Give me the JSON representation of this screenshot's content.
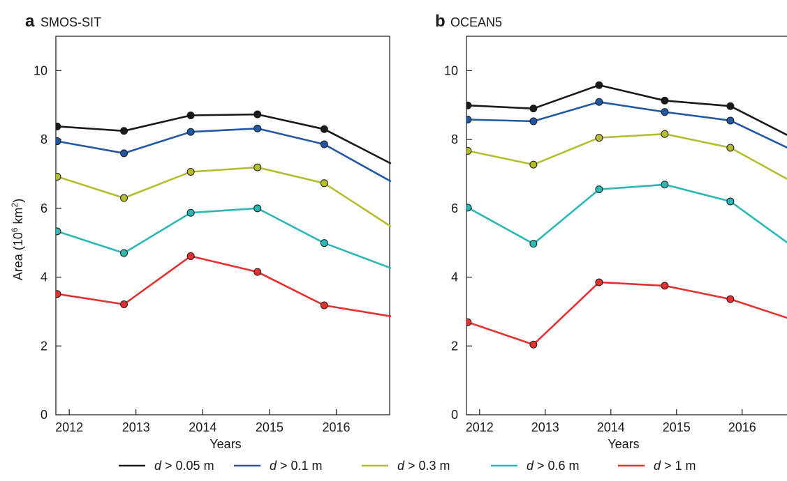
{
  "chart_data": [
    {
      "type": "line",
      "panel_letter": "a",
      "title": "SMOS-SIT",
      "xlabel": "Years",
      "ylabel": "Area (10",
      "ylabel_sup1": "6",
      "ylabel_mid": " km",
      "ylabel_sup2": "2",
      "ylabel_end": ")",
      "xlim": [
        2011.8,
        2016.8
      ],
      "ylim": [
        0,
        11
      ],
      "xticks": [
        2012,
        2013,
        2014,
        2015,
        2016
      ],
      "yticks": [
        0,
        2,
        4,
        6,
        8,
        10
      ],
      "x": [
        2011.82,
        2012.82,
        2013.82,
        2014.82,
        2015.82,
        2016.82
      ],
      "series": [
        {
          "name": "d > 0.05 m",
          "color": "#1a1a1a",
          "values": [
            8.38,
            8.25,
            8.7,
            8.73,
            8.3,
            7.3
          ]
        },
        {
          "name": "d > 0.1 m",
          "color": "#2157a3",
          "values": [
            7.95,
            7.6,
            8.22,
            8.32,
            7.86,
            6.78
          ]
        },
        {
          "name": "d > 0.3 m",
          "color": "#b5bd2e",
          "values": [
            6.92,
            6.3,
            7.06,
            7.19,
            6.73,
            5.47
          ]
        },
        {
          "name": "d > 0.6 m",
          "color": "#2bb8b4",
          "values": [
            5.33,
            4.7,
            5.87,
            6.0,
            4.99,
            4.26
          ]
        },
        {
          "name": "d > 1 m",
          "color": "#e53030",
          "values": [
            3.51,
            3.21,
            4.61,
            4.15,
            3.18,
            2.86
          ]
        }
      ]
    },
    {
      "type": "line",
      "panel_letter": "b",
      "title": "OCEAN5",
      "xlabel": "Years",
      "xlim": [
        2011.8,
        2016.8
      ],
      "ylim": [
        0,
        11
      ],
      "xticks": [
        2012,
        2013,
        2014,
        2015,
        2016
      ],
      "yticks": [
        0,
        2,
        4,
        6,
        8,
        10
      ],
      "x": [
        2011.82,
        2012.82,
        2013.82,
        2014.82,
        2015.82,
        2016.82
      ],
      "series": [
        {
          "name": "d > 0.05 m",
          "color": "#1a1a1a",
          "values": [
            8.99,
            8.9,
            9.58,
            9.13,
            8.97,
            8.0
          ]
        },
        {
          "name": "d > 0.1 m",
          "color": "#2157a3",
          "values": [
            8.58,
            8.53,
            9.09,
            8.8,
            8.55,
            7.64
          ]
        },
        {
          "name": "d > 0.3 m",
          "color": "#b5bd2e",
          "values": [
            7.67,
            7.27,
            8.05,
            8.16,
            7.76,
            6.71
          ]
        },
        {
          "name": "d > 0.6 m",
          "color": "#2bb8b4",
          "values": [
            6.02,
            4.97,
            6.55,
            6.69,
            6.2,
            4.82
          ]
        },
        {
          "name": "d > 1 m",
          "color": "#e53030",
          "values": [
            2.69,
            2.04,
            3.85,
            3.75,
            3.36,
            2.73
          ]
        }
      ]
    }
  ],
  "legend": [
    {
      "var": "d",
      "rest": " > 0.05 m",
      "color": "#1a1a1a"
    },
    {
      "var": "d",
      "rest": " > 0.1 m",
      "color": "#2157a3"
    },
    {
      "var": "d",
      "rest": " > 0.3 m",
      "color": "#b5bd2e"
    },
    {
      "var": "d",
      "rest": " > 0.6 m",
      "color": "#2bb8b4"
    },
    {
      "var": "d",
      "rest": " > 1 m",
      "color": "#e53030"
    }
  ]
}
